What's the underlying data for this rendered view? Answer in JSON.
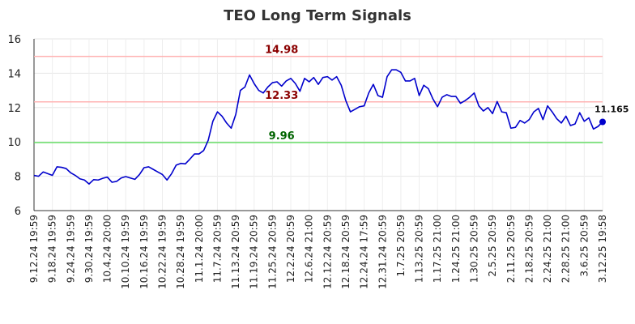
{
  "chart_data": {
    "type": "line",
    "title": "TEO Long Term Signals",
    "xlabel": "",
    "ylabel": "",
    "ylim": [
      6,
      16
    ],
    "yticks": [
      6,
      8,
      10,
      12,
      14,
      16
    ],
    "grid": true,
    "line_color": "#0000cc",
    "x_tick_labels": [
      "9.12.24 19:59",
      "9.18.24 19:59",
      "9.24.24 19:59",
      "9.30.24 19:59",
      "10.4.24 20:00",
      "10.10.24 19:59",
      "10.16.24 19:59",
      "10.22.24 19:59",
      "10.28.24 19:59",
      "11.1.24 20:00",
      "11.7.24 20:59",
      "11.13.24 20:59",
      "11.19.24 20:59",
      "11.25.24 20:59",
      "12.2.24 20:59",
      "12.6.24 21:00",
      "12.12.24 20:59",
      "12.18.24 20:59",
      "12.24.24 17:59",
      "12.31.24 20:59",
      "1.7.25 20:59",
      "1.13.25 20:59",
      "1.17.25 21:00",
      "1.24.25 21:00",
      "1.30.25 20:59",
      "2.5.25 20:59",
      "2.11.25 20:59",
      "2.18.25 20:59",
      "2.24.25 21:00",
      "2.28.25 21:00",
      "3.6.25 20:59",
      "3.12.25 19:58"
    ],
    "reference_lines": [
      {
        "value": 14.98,
        "label": "14.98",
        "line_color": "#ffb3b3",
        "label_color": "#8b0000",
        "label_index": 54
      },
      {
        "value": 12.33,
        "label": "12.33",
        "line_color": "#ffb3b3",
        "label_color": "#8b0000",
        "label_index": 54
      },
      {
        "value": 9.96,
        "label": "9.96",
        "line_color": "#66dd66",
        "label_color": "#006400",
        "label_index": 54
      }
    ],
    "last_value_label": "11.165",
    "values": [
      8.05,
      8.0,
      8.25,
      8.15,
      8.05,
      8.55,
      8.52,
      8.45,
      8.2,
      8.05,
      7.85,
      7.78,
      7.55,
      7.8,
      7.78,
      7.88,
      7.95,
      7.65,
      7.7,
      7.9,
      7.98,
      7.9,
      7.82,
      8.1,
      8.5,
      8.55,
      8.4,
      8.25,
      8.1,
      7.78,
      8.15,
      8.65,
      8.75,
      8.72,
      9.0,
      9.3,
      9.3,
      9.5,
      10.1,
      11.2,
      11.75,
      11.5,
      11.1,
      10.8,
      11.6,
      13.0,
      13.2,
      13.9,
      13.4,
      13.0,
      12.85,
      13.2,
      13.45,
      13.5,
      13.25,
      13.55,
      13.7,
      13.4,
      12.95,
      13.7,
      13.5,
      13.75,
      13.35,
      13.75,
      13.8,
      13.6,
      13.8,
      13.3,
      12.4,
      11.75,
      11.9,
      12.05,
      12.1,
      12.85,
      13.35,
      12.7,
      12.6,
      13.8,
      14.2,
      14.2,
      14.05,
      13.55,
      13.55,
      13.7,
      12.7,
      13.3,
      13.1,
      12.5,
      12.05,
      12.6,
      12.75,
      12.65,
      12.65,
      12.25,
      12.4,
      12.6,
      12.85,
      12.1,
      11.8,
      12.0,
      11.65,
      12.35,
      11.75,
      11.7,
      10.8,
      10.85,
      11.25,
      11.1,
      11.3,
      11.75,
      11.95,
      11.3,
      12.1,
      11.75,
      11.35,
      11.1,
      11.5,
      10.95,
      11.05,
      11.7,
      11.2,
      11.4,
      10.75,
      10.9,
      11.165
    ]
  }
}
